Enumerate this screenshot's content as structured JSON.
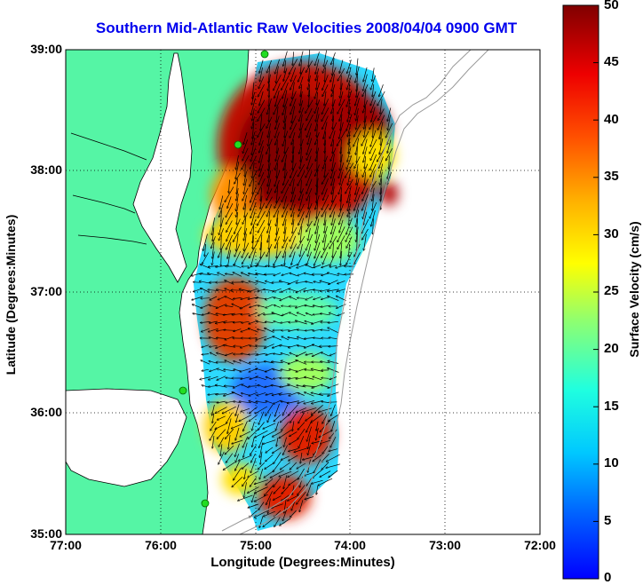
{
  "title": "Southern Mid-Atlantic Raw Velocities 2008/04/04 0900 GMT",
  "axes": {
    "xlabel": "Longitude (Degrees:Minutes)",
    "ylabel": "Latitude (Degrees:Minutes)",
    "xticks": [
      "77:00",
      "76:00",
      "75:00",
      "74:00",
      "73:00",
      "72:00"
    ],
    "yticks": [
      "39:00",
      "38:00",
      "37:00",
      "36:00",
      "35:00"
    ],
    "xlim": [
      -77,
      -72
    ],
    "ylim": [
      35,
      39
    ],
    "grid": "dotted"
  },
  "colorbar": {
    "label": "Surface Velocity (cm/s)",
    "ticks": [
      "50",
      "45",
      "40",
      "35",
      "30",
      "25",
      "20",
      "15",
      "10",
      "5",
      "0"
    ],
    "range": [
      0,
      50
    ],
    "colormap": "jet"
  },
  "colors": {
    "land": "#55f5a5",
    "title": "#0000ee",
    "station": "#22dd22",
    "isobath": "#9a9a9a"
  }
}
